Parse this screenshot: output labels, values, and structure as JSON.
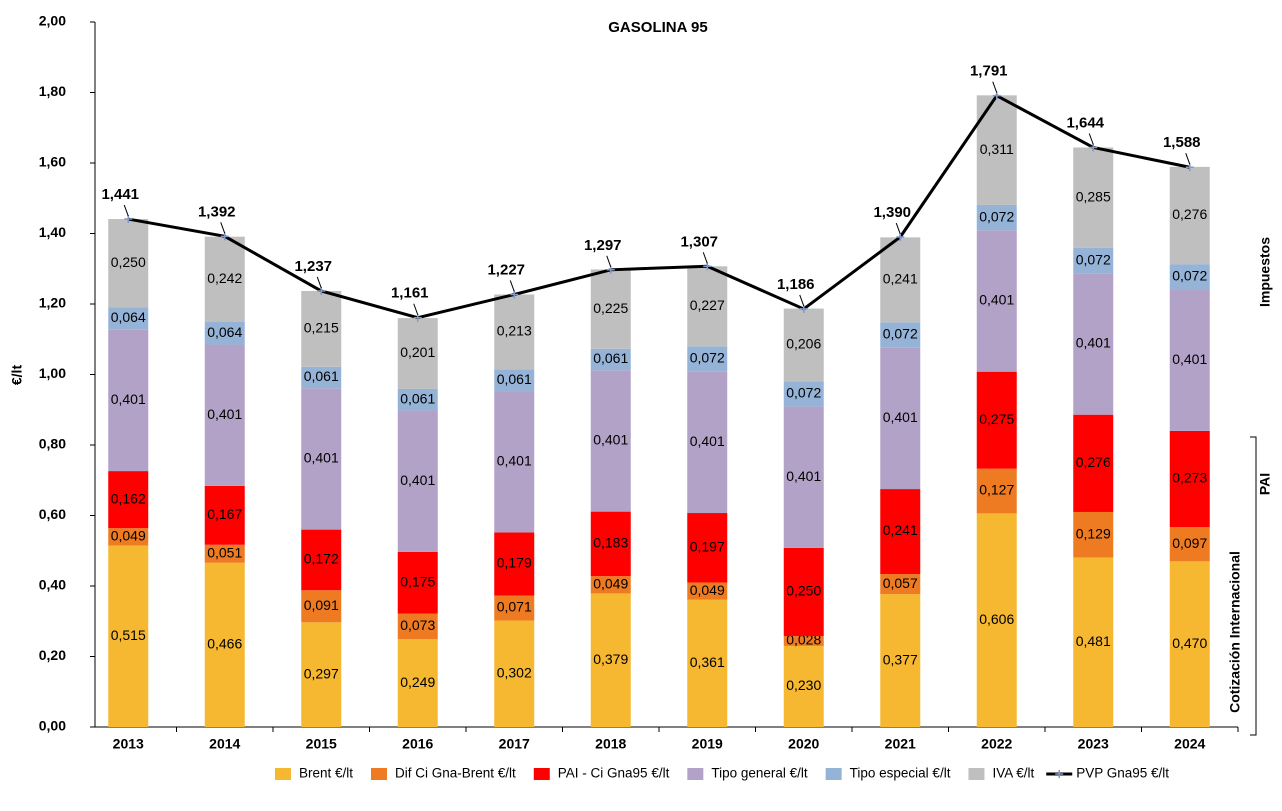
{
  "chart_data": {
    "type": "bar",
    "stacked": true,
    "title": "GASOLINA 95",
    "ylabel": "€/lt",
    "annotations": [
      "Impuestos",
      "PAI",
      "Cotización Internacional"
    ],
    "categories": [
      "2013",
      "2014",
      "2015",
      "2016",
      "2017",
      "2018",
      "2019",
      "2020",
      "2021",
      "2022",
      "2023",
      "2024"
    ],
    "ylim": [
      0,
      2
    ],
    "yticks": [
      {
        "value": 0,
        "label": "0,00"
      },
      {
        "value": 0.2,
        "label": "0,20"
      },
      {
        "value": 0.4,
        "label": "0,40"
      },
      {
        "value": 0.6,
        "label": "0,60"
      },
      {
        "value": 0.8,
        "label": "0,80"
      },
      {
        "value": 1,
        "label": "1,00"
      },
      {
        "value": 1.2,
        "label": "1,20"
      },
      {
        "value": 1.4,
        "label": "1,40"
      },
      {
        "value": 1.6,
        "label": "1,60"
      },
      {
        "value": 1.8,
        "label": "1,80"
      },
      {
        "value": 2,
        "label": "2,00"
      }
    ],
    "legend": "bottom",
    "series": [
      {
        "name": "Brent €/lt",
        "color": "#f6b731",
        "values": [
          0.515,
          0.466,
          0.297,
          0.249,
          0.302,
          0.379,
          0.361,
          0.23,
          0.377,
          0.606,
          0.481,
          0.47
        ],
        "value_labels": [
          "0,515",
          "0,466",
          "0,297",
          "0,249",
          "0,302",
          "0,379",
          "0,361",
          "0,230",
          "0,377",
          "0,606",
          "0,481",
          "0,470"
        ]
      },
      {
        "name": "Dif Ci Gna-Brent €/lt",
        "color": "#ee7b22",
        "values": [
          0.049,
          0.051,
          0.091,
          0.073,
          0.071,
          0.049,
          0.049,
          0.028,
          0.057,
          0.127,
          0.129,
          0.097
        ],
        "value_labels": [
          "0,049",
          "0,051",
          "0,091",
          "0,073",
          "0,071",
          "0,049",
          "0,049",
          "0,028",
          "0,057",
          "0,127",
          "0,129",
          "0,097"
        ]
      },
      {
        "name": "PAI - Ci Gna95 €/lt",
        "color": "#fe0000",
        "values": [
          0.162,
          0.167,
          0.172,
          0.175,
          0.179,
          0.183,
          0.197,
          0.25,
          0.241,
          0.275,
          0.276,
          0.273
        ],
        "value_labels": [
          "0,162",
          "0,167",
          "0,172",
          "0,175",
          "0,179",
          "0,183",
          "0,197",
          "0,250",
          "0,241",
          "0,275",
          "0,276",
          "0,273"
        ]
      },
      {
        "name": "Tipo general €/lt",
        "color": "#b3a2c7",
        "values": [
          0.401,
          0.401,
          0.401,
          0.401,
          0.401,
          0.401,
          0.401,
          0.401,
          0.401,
          0.401,
          0.401,
          0.401
        ],
        "value_labels": [
          "0,401",
          "0,401",
          "0,401",
          "0,401",
          "0,401",
          "0,401",
          "0,401",
          "0,401",
          "0,401",
          "0,401",
          "0,401",
          "0,401"
        ]
      },
      {
        "name": "Tipo especial €/lt",
        "color": "#95b3d7",
        "values": [
          0.064,
          0.064,
          0.061,
          0.061,
          0.061,
          0.061,
          0.072,
          0.072,
          0.072,
          0.072,
          0.072,
          0.072
        ],
        "value_labels": [
          "0,064",
          "0,064",
          "0,061",
          "0,061",
          "0,061",
          "0,061",
          "0,072",
          "0,072",
          "0,072",
          "0,072",
          "0,072",
          "0,072"
        ]
      },
      {
        "name": "IVA €/lt",
        "color": "#bfbfbf",
        "values": [
          0.25,
          0.242,
          0.215,
          0.201,
          0.213,
          0.225,
          0.227,
          0.206,
          0.241,
          0.311,
          0.285,
          0.276
        ],
        "value_labels": [
          "0,250",
          "0,242",
          "0,215",
          "0,201",
          "0,213",
          "0,225",
          "0,227",
          "0,206",
          "0,241",
          "0,311",
          "0,285",
          "0,276"
        ]
      },
      {
        "name": "PVP Gna95 €/lt",
        "type": "line",
        "color": "#000000",
        "values": [
          1.441,
          1.392,
          1.237,
          1.161,
          1.227,
          1.297,
          1.307,
          1.186,
          1.39,
          1.791,
          1.644,
          1.588
        ],
        "value_labels": [
          "1,441",
          "1,392",
          "1,237",
          "1,161",
          "1,227",
          "1,297",
          "1,307",
          "1,186",
          "1,390",
          "1,791",
          "1,644",
          "1,588"
        ]
      }
    ]
  }
}
